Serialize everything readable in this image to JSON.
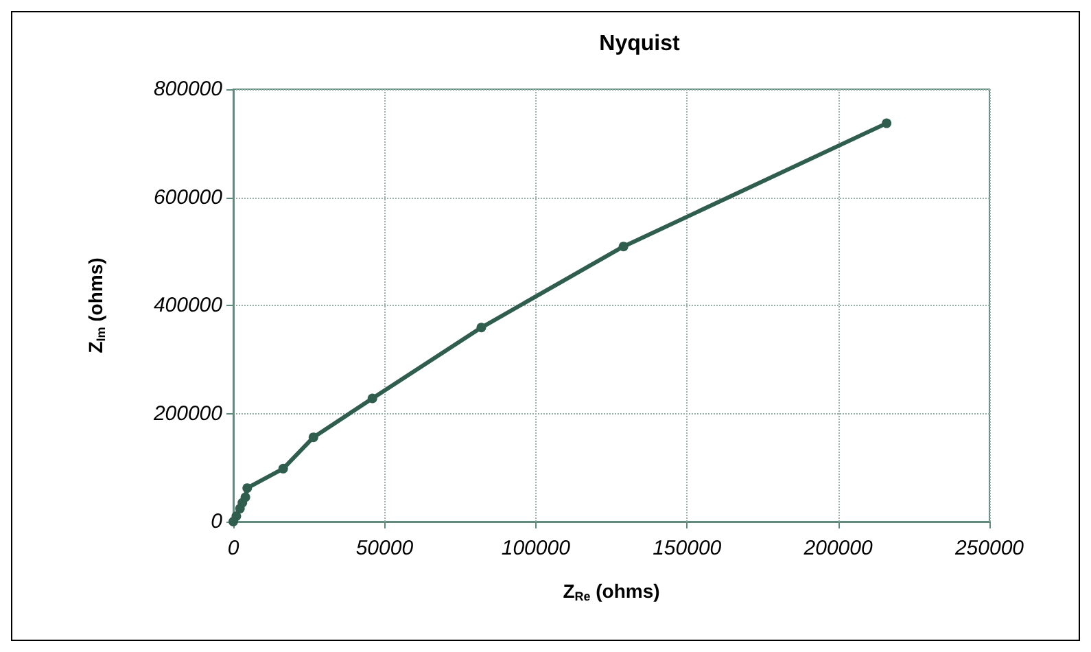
{
  "chart_data": {
    "type": "line",
    "title": "Nyquist",
    "xlabel": "Z$_{Re}$ (ohms)",
    "ylabel": "Z$_{Im}$ (ohms)",
    "x": [
      0,
      1000,
      2200,
      3000,
      4000,
      4600,
      16500,
      26500,
      46000,
      82000,
      129000,
      216000
    ],
    "series": [
      {
        "color": "#2f5e4e",
        "values": [
          0,
          10000,
          24000,
          35000,
          45000,
          62000,
          98000,
          156000,
          228000,
          359000,
          509000,
          737000
        ]
      }
    ],
    "xlim": [
      0,
      250000
    ],
    "xticks": [
      0,
      50000,
      100000,
      150000,
      200000,
      250000
    ],
    "ylim": [
      0,
      800000
    ],
    "yticks": [
      0,
      200000,
      400000,
      600000,
      800000
    ],
    "grid": true,
    "marker": "circle",
    "line_style": "solid"
  }
}
